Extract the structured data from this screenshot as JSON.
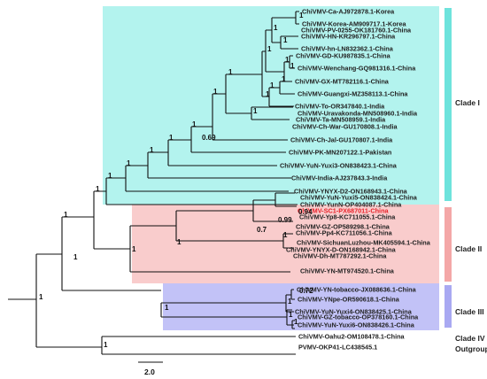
{
  "colors": {
    "clade_i_box": "#b3f3ee",
    "clade_i_bar": "#6ee3dc",
    "clade_ii_box": "#f9cccc",
    "clade_ii_bar": "#f4a7a7",
    "clade_iii_box": "#c2c2f7",
    "clade_iii_bar": "#a9a9f2",
    "highlight_taxon": "#e8222a"
  },
  "taxa": [
    "ChiVMV-Ca-AJ972878.1-Korea",
    "ChiVMV-Korea-AM909717.1-Korea",
    "ChiVMV-PV-0255-OK181760.1-China",
    "ChiVMV-HN-KR296797.1-China",
    "ChiVMV-hn-LN832362.1-China",
    "ChiVMV-GD-KU987835.1-China",
    "ChiVMV-Wenchang-GQ981316.1-China",
    "ChiVMV-GX-MT782116.1-China",
    "ChiVMV-Guangxi-MZ358113.1-China",
    "ChiVMV-To-OR347840.1-India",
    "ChiVMV-Uravakonda-MN508960.1-India",
    "ChiVMV-Ta-MN508959.1-India",
    "ChiVMV-Ch-War-GU170808.1-India",
    "ChiVMV-Ch-Jal-GU170807.1-India",
    "ChiVMV-PK-MN207122.1-Pakistan",
    "ChiVMV-YuN-Yuxi3-ON838423.1-China",
    "ChiVMV-India-AJ237843.3-India",
    "ChiVMV-YNYX-D2-ON168943.1-China",
    "ChiVMV-YuN-Yuxi5-ON838424.1-China",
    "ChiVMV-YunN-OP404087.1-China",
    "ChiVMV-SC1-PX687011-China",
    "ChiVMV-Yp8-KC711055.1-China",
    "ChiVMV-GZ-OP589298.1-China",
    "ChiVMV-Pp4-KC711056.1-China",
    "ChiVMV-SichuanLuzhou-MK405594.1-China",
    "ChiVMV-YNYX-D-ON168942.1-China",
    "ChiVMV-Dh-MT787292.1-China",
    "ChiVMV-YN-MT974520.1-China",
    "ChiVMV-YN-tobacco-JX088636.1-China",
    "ChiVMV-YNpe-OR590618.1-China",
    "ChiVMV-YuN-Yuxi4-ON838425.1-China",
    "ChiVMV-GZ-tobacco-OP378160.1-China",
    "ChiVMV-YuN-Yuxi6-ON838426.1-China",
    "ChiVMV-Oahu2-OM108478.1-China",
    "PVMV-OKP41-LC438545.1"
  ],
  "highlighted_taxon": "ChiVMV-SC1-PX687011-China",
  "clades": [
    {
      "label": "Clade I"
    },
    {
      "label": "Clade II"
    },
    {
      "label": "Clade III"
    },
    {
      "label": "Clade IV"
    },
    {
      "label": "Outgroup"
    }
  ],
  "support_values": [
    "1",
    "1",
    "1",
    "1",
    "1",
    "1",
    "1",
    "1",
    "1",
    "1",
    "1",
    "1",
    "1",
    "1",
    "1",
    "0.69",
    "1",
    "1",
    "1",
    "1",
    "0.94",
    "0.99",
    "0.7",
    "1",
    "1",
    "1",
    "1",
    "1",
    "0.72",
    "1",
    "1",
    "1",
    "1",
    "1"
  ],
  "scale_bar": {
    "label": "2.0"
  }
}
